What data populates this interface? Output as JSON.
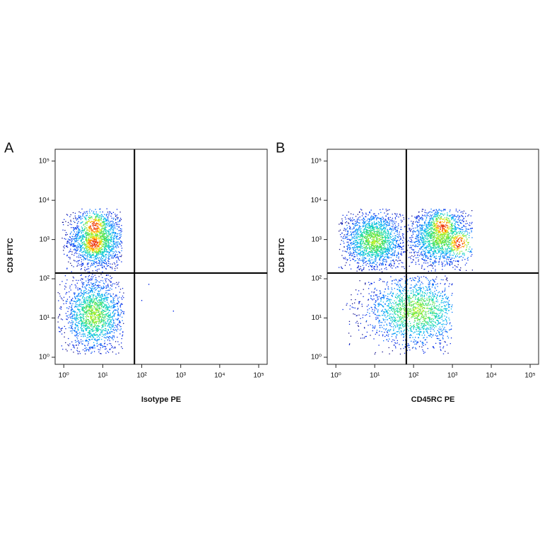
{
  "chart_data": [
    {
      "type": "scatter",
      "panel_label": "A",
      "xlabel": "Isotype PE",
      "ylabel": "CD3 FITC",
      "xscale": "log",
      "yscale": "log",
      "xlim": [
        0.6,
        165000
      ],
      "ylim": [
        0.66,
        200000
      ],
      "xticks": [
        {
          "value": 1,
          "label": "10⁰"
        },
        {
          "value": 10,
          "label": "10¹"
        },
        {
          "value": 100,
          "label": "10²"
        },
        {
          "value": 1000,
          "label": "10³"
        },
        {
          "value": 10000,
          "label": "10⁴"
        },
        {
          "value": 100000,
          "label": "10⁵"
        }
      ],
      "yticks": [
        {
          "value": 1,
          "label": "10⁰"
        },
        {
          "value": 10,
          "label": "10¹"
        },
        {
          "value": 100,
          "label": "10²"
        },
        {
          "value": 1000,
          "label": "10³"
        },
        {
          "value": 10000,
          "label": "10⁴"
        },
        {
          "value": 100000,
          "label": "10⁵"
        }
      ],
      "gate_x": 65,
      "gate_y": 140,
      "colormap": [
        "#14108c",
        "#0026e6",
        "#0070ff",
        "#00b4f0",
        "#10d8b0",
        "#50e050",
        "#b8f020",
        "#ffd000",
        "#ff6a00",
        "#e01000"
      ],
      "populations": [
        {
          "x": 7,
          "y": 1000,
          "x_range": [
            0.9,
            31
          ],
          "y_range": [
            147,
            6200
          ],
          "peaks": [
            {
              "x": 6,
              "y": 780
            },
            {
              "x": 6,
              "y": 2200
            }
          ]
        },
        {
          "x": 6,
          "y": 12,
          "x_range": [
            0.7,
            35
          ],
          "y_range": [
            1.2,
            130
          ],
          "peaks": []
        }
      ],
      "events": {
        "x": [
          152,
          650,
          100
        ],
        "y": [
          72,
          15,
          28
        ]
      }
    },
    {
      "type": "scatter",
      "panel_label": "B",
      "xlabel": "CD45RC PE",
      "ylabel": "CD3 FITC",
      "xscale": "log",
      "yscale": "log",
      "xlim": [
        0.6,
        165000
      ],
      "ylim": [
        0.66,
        200000
      ],
      "xticks": [
        {
          "value": 1,
          "label": "10⁰"
        },
        {
          "value": 10,
          "label": "10¹"
        },
        {
          "value": 100,
          "label": "10²"
        },
        {
          "value": 1000,
          "label": "10³"
        },
        {
          "value": 10000,
          "label": "10⁴"
        },
        {
          "value": 100000,
          "label": "10⁵"
        }
      ],
      "yticks": [
        {
          "value": 1,
          "label": "10⁰"
        },
        {
          "value": 10,
          "label": "10¹"
        },
        {
          "value": 100,
          "label": "10²"
        },
        {
          "value": 1000,
          "label": "10³"
        },
        {
          "value": 10000,
          "label": "10⁴"
        },
        {
          "value": 100000,
          "label": "10⁵"
        }
      ],
      "gate_x": 65,
      "gate_y": 140,
      "colormap": [
        "#14108c",
        "#0026e6",
        "#0070ff",
        "#00b4f0",
        "#10d8b0",
        "#50e050",
        "#b8f020",
        "#ffd000",
        "#ff6a00",
        "#e01000"
      ],
      "populations": [
        {
          "x": 9.5,
          "y": 950,
          "x_range": [
            1.2,
            62
          ],
          "y_range": [
            150,
            6000
          ],
          "peaks": []
        },
        {
          "x": 500,
          "y": 1170,
          "x_range": [
            62,
            3300
          ],
          "y_range": [
            150,
            6000
          ],
          "peaks": [
            {
              "x": 550,
              "y": 2200
            },
            {
              "x": 1500,
              "y": 800
            }
          ]
        },
        {
          "x": 115,
          "y": 15,
          "x_range": [
            1.5,
            1000
          ],
          "y_range": [
            1.2,
            120
          ],
          "peaks": []
        }
      ]
    }
  ]
}
